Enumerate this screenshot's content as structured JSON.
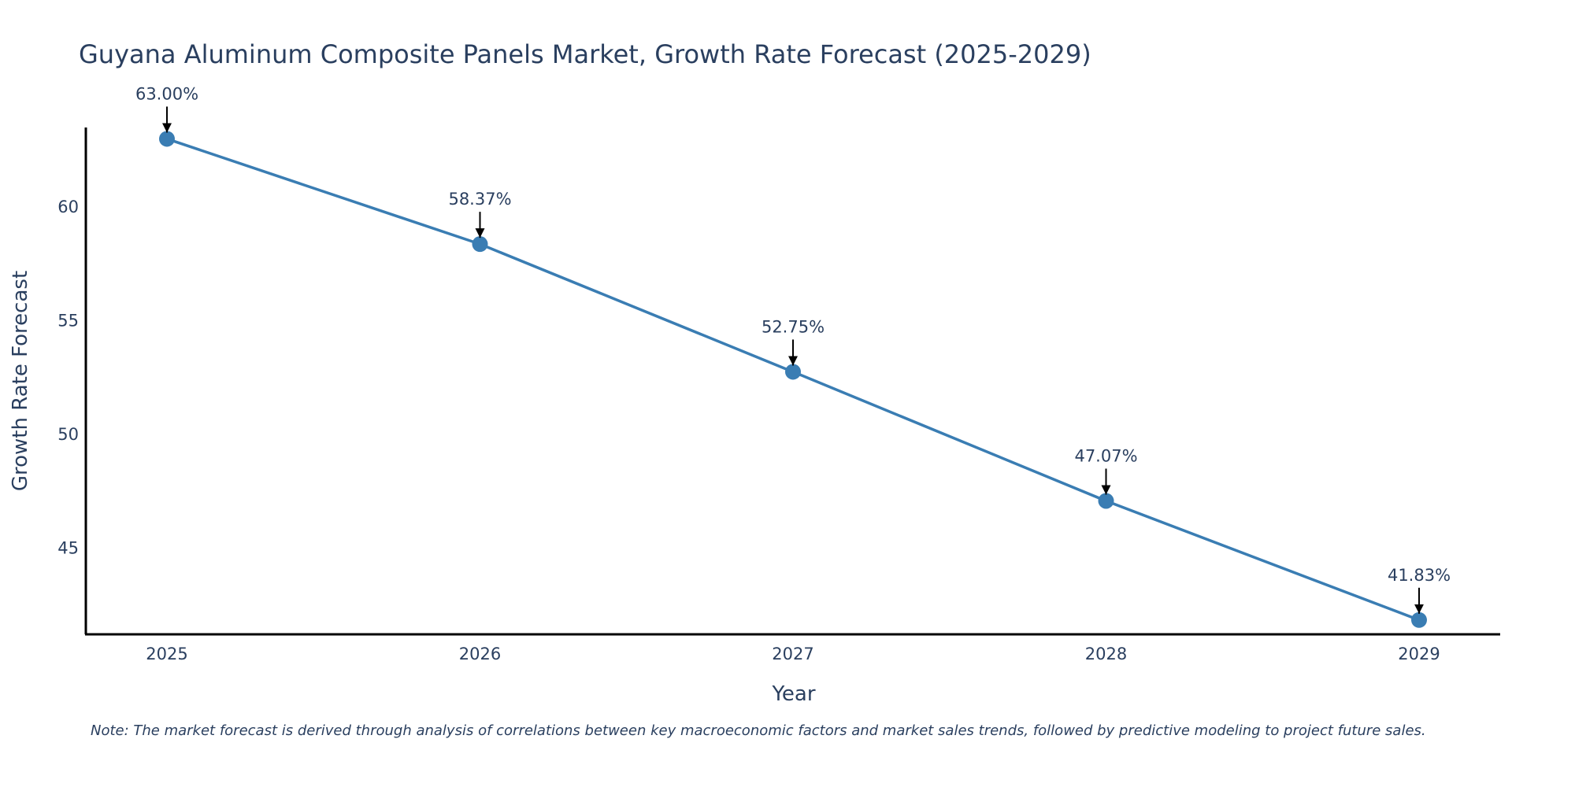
{
  "chart_data": {
    "type": "line",
    "title": "Guyana Aluminum Composite Panels Market, Growth Rate Forecast (2025-2029)",
    "xlabel": "Year",
    "ylabel": "Growth Rate Forecast",
    "categories": [
      "2025",
      "2026",
      "2027",
      "2028",
      "2029"
    ],
    "series": [
      {
        "name": "Growth Rate Forecast",
        "values": [
          63.0,
          58.37,
          52.75,
          47.07,
          41.83
        ],
        "labels": [
          "63.00%",
          "58.37%",
          "52.75%",
          "47.07%",
          "41.83%"
        ],
        "color": "#3a7db3"
      }
    ],
    "yticks": [
      45,
      50,
      55,
      60
    ],
    "ylim": [
      41.2,
      63.5
    ],
    "grid": false,
    "note": "Note: The market forecast is derived through analysis of correlations between key macroeconomic factors and market sales trends, followed by predictive modeling to project future sales."
  }
}
